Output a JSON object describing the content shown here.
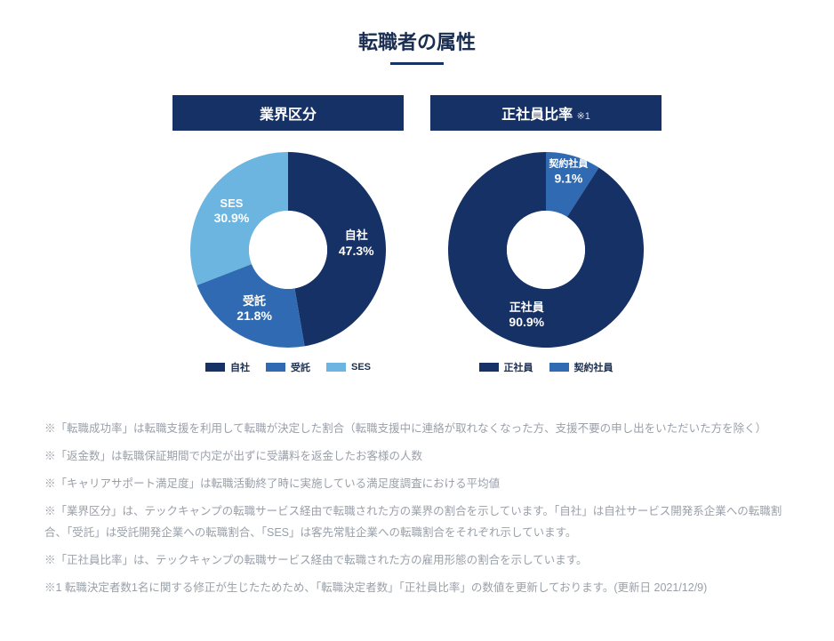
{
  "page_title": "転職者の属性",
  "charts": {
    "industry": {
      "type": "donut",
      "header": "業界区分",
      "header_note": "",
      "slices": [
        {
          "label": "自社",
          "value": 47.3,
          "color": "#153166",
          "text_color": "#ffffff"
        },
        {
          "label": "受託",
          "value": 21.8,
          "color": "#2f6ab3",
          "text_color": "#ffffff"
        },
        {
          "label": "SES",
          "value": 30.9,
          "color": "#6bb5e0",
          "text_color": "#ffffff"
        }
      ],
      "inner_radius_ratio": 0.4,
      "start_angle_deg": -90,
      "background_color": "#ffffff",
      "legend": [
        {
          "label": "自社",
          "color": "#153166"
        },
        {
          "label": "受託",
          "color": "#2f6ab3"
        },
        {
          "label": "SES",
          "color": "#6bb5e0"
        }
      ]
    },
    "employment": {
      "type": "donut",
      "header": "正社員比率",
      "header_note": "※1",
      "slices": [
        {
          "label": "契約社員",
          "value": 9.1,
          "color": "#2f6ab3",
          "text_color": "#ffffff",
          "small": true
        },
        {
          "label": "正社員",
          "value": 90.9,
          "color": "#153166",
          "text_color": "#ffffff"
        }
      ],
      "inner_radius_ratio": 0.4,
      "start_angle_deg": -90,
      "background_color": "#ffffff",
      "legend": [
        {
          "label": "正社員",
          "color": "#153166"
        },
        {
          "label": "契約社員",
          "color": "#2f6ab3"
        }
      ]
    }
  },
  "styling": {
    "header_bg": "#153166",
    "header_fg": "#ffffff",
    "title_color": "#1a2e52",
    "underline_color": "#153166",
    "footnote_color": "#9aa0a9",
    "label_fontsize_pt": 13,
    "legend_fontsize_pt": 11
  },
  "footnotes": [
    "※「転職成功率」は転職支援を利用して転職が決定した割合（転職支援中に連絡が取れなくなった方、支援不要の申し出をいただいた方を除く）",
    "※「返金数」は転職保証期間で内定が出ずに受講料を返金したお客様の人数",
    "※「キャリアサポート満足度」は転職活動終了時に実施している満足度調査における平均値",
    "※「業界区分」は、テックキャンプの転職サービス経由で転職された方の業界の割合を示しています。「自社」は自社サービス開発系企業への転職割合、「受託」は受託開発企業への転職割合、「SES」は客先常駐企業への転職割合をそれぞれ示しています。",
    "※「正社員比率」は、テックキャンプの転職サービス経由で転職された方の雇用形態の割合を示しています。",
    "※1 転職決定者数1名に関する修正が生じたためため、「転職決定者数」「正社員比率」の数値を更新しております。(更新日 2021/12/9)"
  ]
}
